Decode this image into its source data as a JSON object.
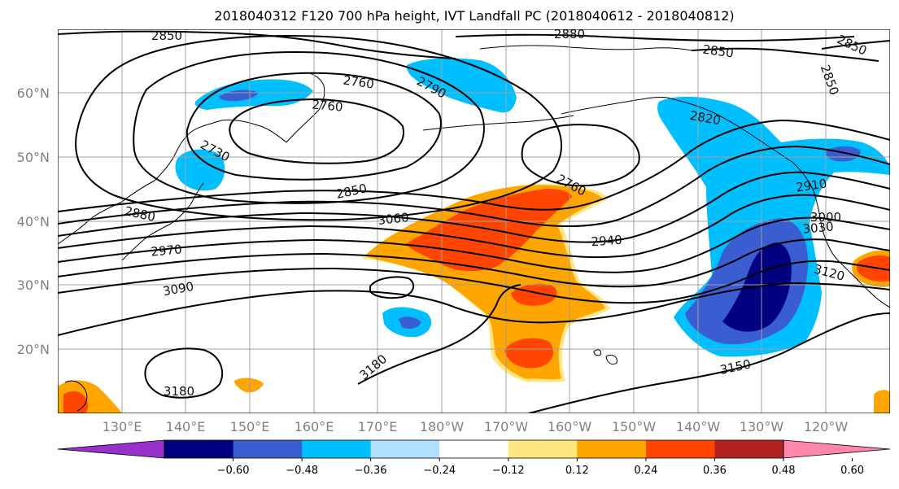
{
  "title": "2018040312 F120 700 hPa height, IVT Landfall PC (2018040612 - 2018040812)",
  "lat_labels": [
    "60°N",
    "50°N",
    "40°N",
    "30°N",
    "20°N"
  ],
  "lon_labels": [
    "130°E",
    "140°E",
    "150°E",
    "160°E",
    "170°E",
    "180°W",
    "170°W",
    "160°W",
    "150°W",
    "140°W",
    "130°W",
    "120°W"
  ],
  "contour_labels": [
    {
      "text": "2850"
    },
    {
      "text": "2880"
    },
    {
      "text": "2850"
    },
    {
      "text": "2850"
    },
    {
      "text": "2850"
    },
    {
      "text": "2760"
    },
    {
      "text": "2790"
    },
    {
      "text": "2760"
    },
    {
      "text": "2730"
    },
    {
      "text": "2820"
    },
    {
      "text": "2850"
    },
    {
      "text": "2760"
    },
    {
      "text": "2880"
    },
    {
      "text": "3060"
    },
    {
      "text": "2910"
    },
    {
      "text": "3000"
    },
    {
      "text": "3030"
    },
    {
      "text": "2940"
    },
    {
      "text": "2970"
    },
    {
      "text": "3120"
    },
    {
      "text": "3090"
    },
    {
      "text": "3180"
    },
    {
      "text": "3150"
    },
    {
      "text": "3180"
    }
  ],
  "colorbar": {
    "colors": [
      "#9932CC",
      "#000080",
      "#3A5ED1",
      "#00BFFF",
      "#B0E0FF",
      "#FFFFFF",
      "#FFE680",
      "#FFA500",
      "#FF4500",
      "#B22222",
      "#FF88AA"
    ],
    "tick_labels": [
      "−0.60",
      "−0.48",
      "−0.36",
      "−0.24",
      "−0.12",
      "0.12",
      "0.24",
      "0.36",
      "0.48",
      "0.60"
    ]
  }
}
